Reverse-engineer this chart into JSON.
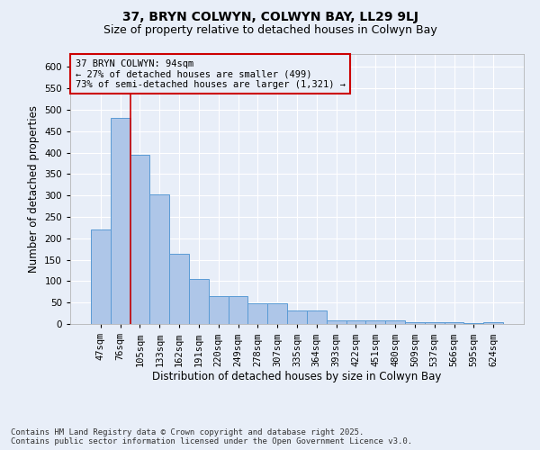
{
  "title1": "37, BRYN COLWYN, COLWYN BAY, LL29 9LJ",
  "title2": "Size of property relative to detached houses in Colwyn Bay",
  "xlabel": "Distribution of detached houses by size in Colwyn Bay",
  "ylabel": "Number of detached properties",
  "categories": [
    "47sqm",
    "76sqm",
    "105sqm",
    "133sqm",
    "162sqm",
    "191sqm",
    "220sqm",
    "249sqm",
    "278sqm",
    "307sqm",
    "335sqm",
    "364sqm",
    "393sqm",
    "422sqm",
    "451sqm",
    "480sqm",
    "509sqm",
    "537sqm",
    "566sqm",
    "595sqm",
    "624sqm"
  ],
  "values": [
    220,
    480,
    395,
    302,
    163,
    105,
    65,
    65,
    48,
    48,
    31,
    31,
    9,
    9,
    9,
    8,
    5,
    5,
    5,
    3,
    4
  ],
  "bar_color": "#aec6e8",
  "bar_edge_color": "#5a9bd5",
  "background_color": "#e8eef8",
  "grid_color": "#ffffff",
  "annotation_box_color": "#cc0000",
  "vline_color": "#cc0000",
  "vline_x_idx": 1,
  "annotation_text": "37 BRYN COLWYN: 94sqm\n← 27% of detached houses are smaller (499)\n73% of semi-detached houses are larger (1,321) →",
  "ylim": [
    0,
    630
  ],
  "yticks": [
    0,
    50,
    100,
    150,
    200,
    250,
    300,
    350,
    400,
    450,
    500,
    550,
    600
  ],
  "footer": "Contains HM Land Registry data © Crown copyright and database right 2025.\nContains public sector information licensed under the Open Government Licence v3.0.",
  "title1_fontsize": 10,
  "title2_fontsize": 9,
  "xlabel_fontsize": 8.5,
  "ylabel_fontsize": 8.5,
  "tick_fontsize": 7.5,
  "footer_fontsize": 6.5,
  "annot_fontsize": 7.5
}
